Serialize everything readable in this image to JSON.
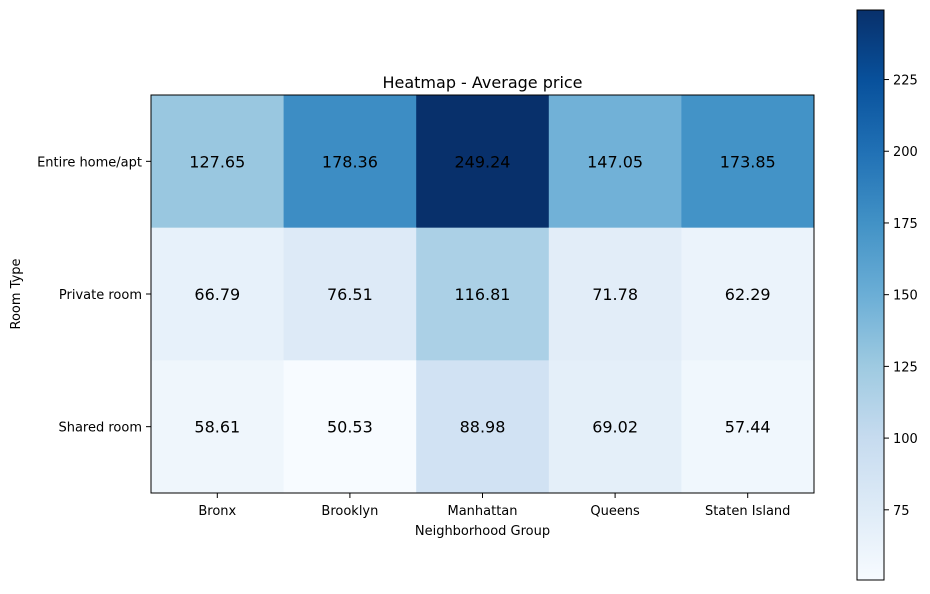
{
  "chart_data": {
    "type": "heatmap",
    "title": "Heatmap - Average price",
    "xlabel": "Neighborhood Group",
    "ylabel": "Room Type",
    "columns": [
      "Bronx",
      "Brooklyn",
      "Manhattan",
      "Queens",
      "Staten Island"
    ],
    "rows": [
      "Entire home/apt",
      "Private room",
      "Shared room"
    ],
    "values": [
      [
        127.65,
        178.36,
        249.24,
        147.05,
        173.85
      ],
      [
        66.79,
        76.51,
        116.81,
        71.78,
        62.29
      ],
      [
        58.61,
        50.53,
        88.98,
        69.02,
        57.44
      ]
    ],
    "value_labels": [
      [
        "127.65",
        "178.36",
        "249.24",
        "147.05",
        "173.85"
      ],
      [
        "66.79",
        "76.51",
        "116.81",
        "71.78",
        "62.29"
      ],
      [
        "58.61",
        "50.53",
        "88.98",
        "69.02",
        "57.44"
      ]
    ],
    "colormap": "Blues",
    "colormap_stops": [
      "#f7fbff",
      "#deebf7",
      "#c6dbef",
      "#9ecae1",
      "#6baed6",
      "#4292c6",
      "#2171b5",
      "#08519c",
      "#08306b"
    ],
    "colorbar": {
      "range": [
        50.53,
        249.24
      ],
      "ticks": [
        75,
        100,
        125,
        150,
        175,
        200,
        225
      ],
      "tick_labels": [
        "75",
        "100",
        "125",
        "150",
        "175",
        "200",
        "225"
      ]
    },
    "grid": false
  }
}
